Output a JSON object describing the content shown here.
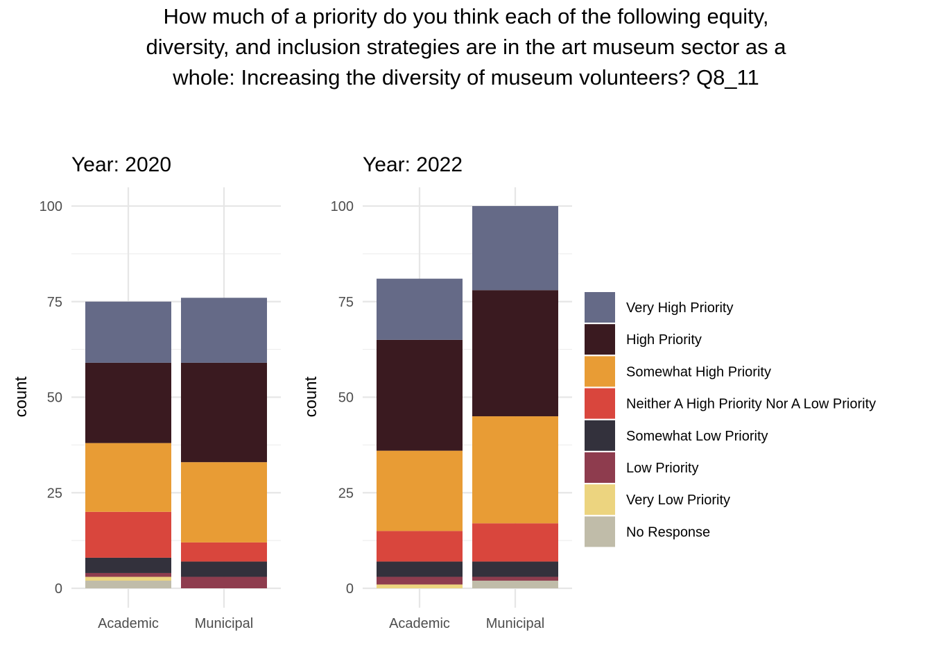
{
  "title_lines": [
    "How much of a priority do you think each of the following equity,",
    "diversity, and inclusion strategies are in the art museum sector as a",
    "whole: Increasing the diversity of museum volunteers? Q8_11"
  ],
  "legend": [
    {
      "label": "Very High Priority",
      "color": "#656a87"
    },
    {
      "label": "High Priority",
      "color": "#3a1a20"
    },
    {
      "label": "Somewhat High Priority",
      "color": "#e89c35"
    },
    {
      "label": "Neither A High Priority Nor A Low Priority",
      "color": "#d9463d"
    },
    {
      "label": "Somewhat Low Priority",
      "color": "#33313c"
    },
    {
      "label": "Low Priority",
      "color": "#8e3c4e"
    },
    {
      "label": "Very Low Priority",
      "color": "#ecd47f"
    },
    {
      "label": "No Response",
      "color": "#c0bca9"
    }
  ],
  "chart_data": [
    {
      "type": "bar",
      "stacked": true,
      "title": "Year: 2020",
      "xlabel": "",
      "ylabel": "count",
      "ylim": [
        0,
        100
      ],
      "yticks": [
        0,
        25,
        50,
        75,
        100
      ],
      "categories": [
        "Academic",
        "Municipal"
      ],
      "series": [
        {
          "name": "No Response",
          "values": [
            2,
            0
          ]
        },
        {
          "name": "Very Low Priority",
          "values": [
            1,
            0
          ]
        },
        {
          "name": "Low Priority",
          "values": [
            1,
            3
          ]
        },
        {
          "name": "Somewhat Low Priority",
          "values": [
            4,
            4
          ]
        },
        {
          "name": "Neither A High Priority Nor A Low Priority",
          "values": [
            12,
            5
          ]
        },
        {
          "name": "Somewhat High Priority",
          "values": [
            18,
            21
          ]
        },
        {
          "name": "High Priority",
          "values": [
            21,
            26
          ]
        },
        {
          "name": "Very High Priority",
          "values": [
            16,
            17
          ]
        }
      ]
    },
    {
      "type": "bar",
      "stacked": true,
      "title": "Year: 2022",
      "xlabel": "",
      "ylabel": "count",
      "ylim": [
        0,
        100
      ],
      "yticks": [
        0,
        25,
        50,
        75,
        100
      ],
      "categories": [
        "Academic",
        "Municipal"
      ],
      "series": [
        {
          "name": "No Response",
          "values": [
            0,
            2
          ]
        },
        {
          "name": "Very Low Priority",
          "values": [
            1,
            0
          ]
        },
        {
          "name": "Low Priority",
          "values": [
            2,
            1
          ]
        },
        {
          "name": "Somewhat Low Priority",
          "values": [
            4,
            4
          ]
        },
        {
          "name": "Neither A High Priority Nor A Low Priority",
          "values": [
            8,
            10
          ]
        },
        {
          "name": "Somewhat High Priority",
          "values": [
            21,
            28
          ]
        },
        {
          "name": "High Priority",
          "values": [
            29,
            33
          ]
        },
        {
          "name": "Very High Priority",
          "values": [
            16,
            22
          ]
        }
      ]
    }
  ]
}
